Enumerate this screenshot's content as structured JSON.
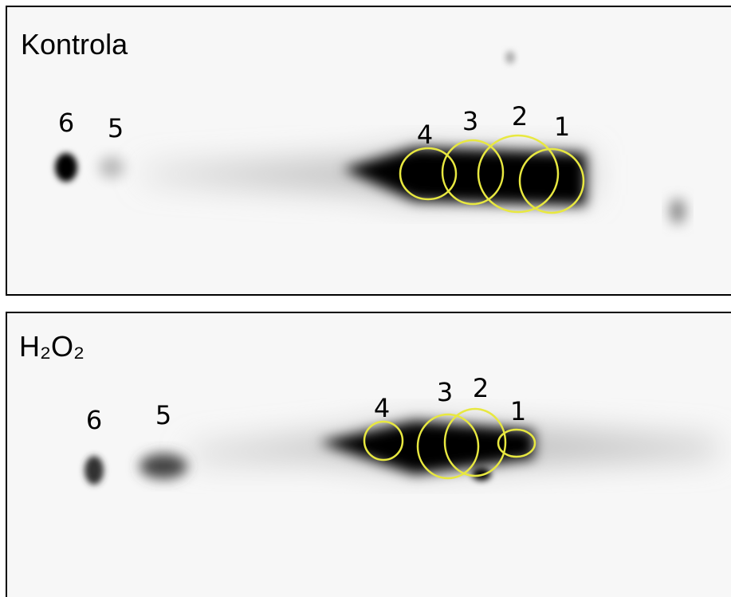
{
  "panels": [
    {
      "title": "Kontrola",
      "spot_labels": [
        "1",
        "2",
        "3",
        "4",
        "5",
        "6"
      ]
    },
    {
      "title": "H₂O₂",
      "spot_labels": [
        "1",
        "2",
        "3",
        "4",
        "5",
        "6"
      ]
    }
  ]
}
